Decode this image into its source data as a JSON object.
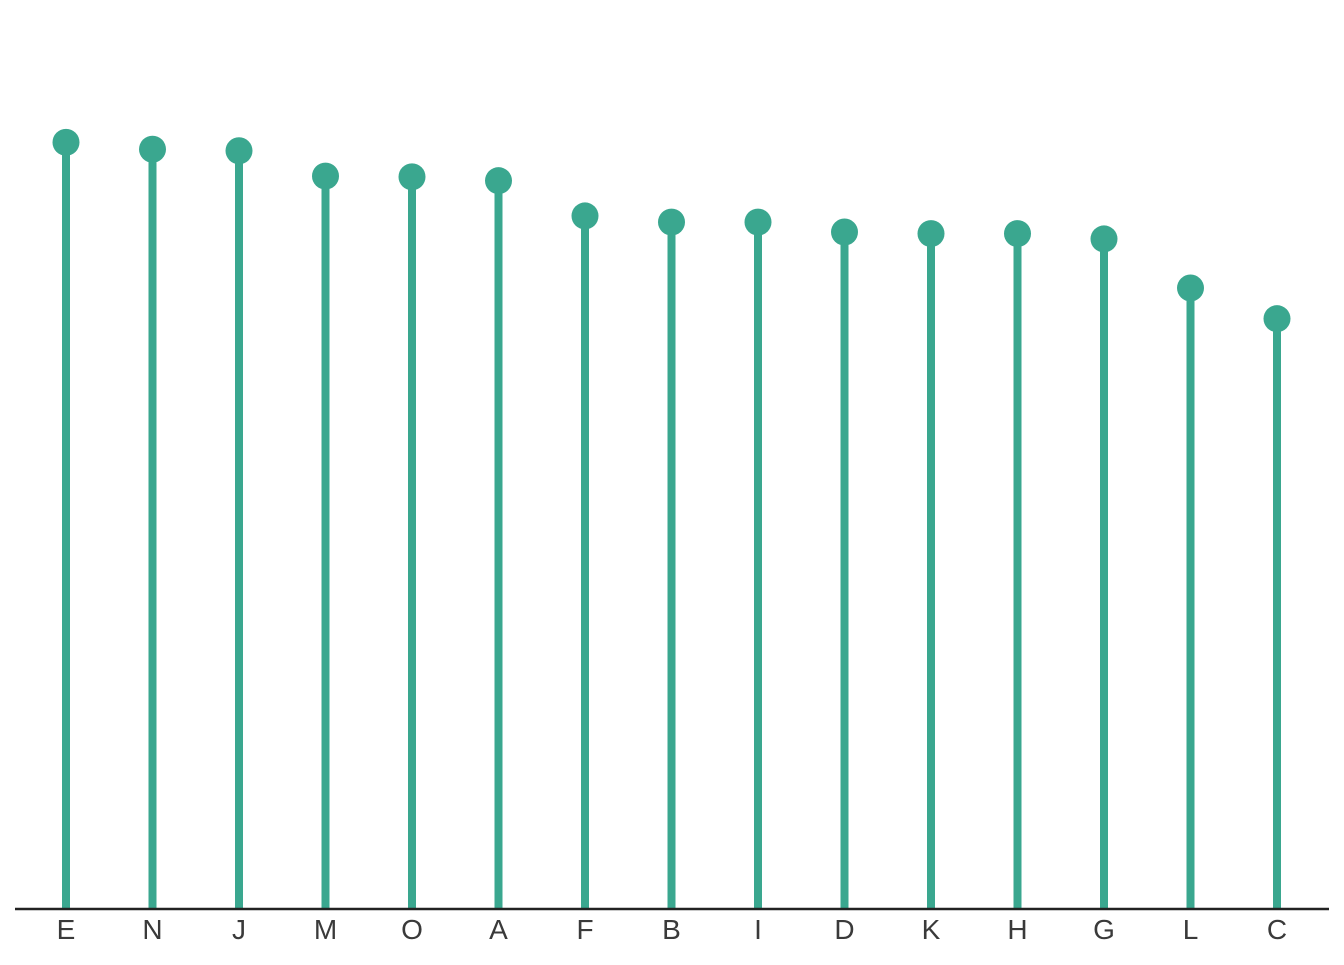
{
  "chart_data": {
    "type": "lollipop",
    "categories": [
      "E",
      "N",
      "J",
      "M",
      "O",
      "A",
      "F",
      "B",
      "I",
      "D",
      "K",
      "H",
      "G",
      "L",
      "C"
    ],
    "values": [
      100,
      99.1,
      98.9,
      95.6,
      95.5,
      95.0,
      90.4,
      89.6,
      89.6,
      88.3,
      88.1,
      88.1,
      87.4,
      81.0,
      77.0
    ],
    "ylim": [
      0,
      117
    ],
    "grid": false,
    "legend": "none",
    "colors": {
      "stem": "#3aa78f",
      "marker": "#3aa78f",
      "axis": "#222222",
      "tick_text": "#3a3a3a"
    }
  }
}
